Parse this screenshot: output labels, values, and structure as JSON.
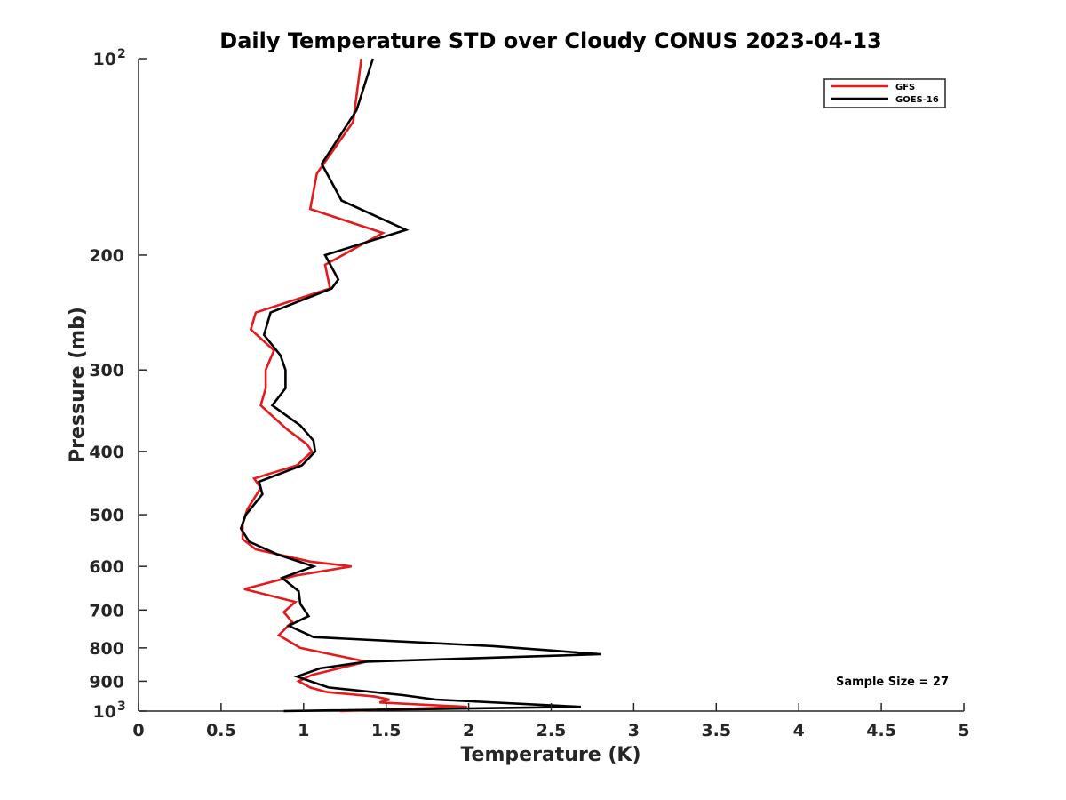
{
  "chart_data": {
    "type": "line",
    "title": "Daily Temperature STD over Cloudy CONUS 2023-04-13",
    "xlabel": "Temperature (K)",
    "ylabel": "Pressure (mb)",
    "xlim": [
      0,
      5
    ],
    "ylim": [
      100,
      1000
    ],
    "y_scale": "log",
    "y_reversed": true,
    "grid": false,
    "legend_position": "top-right",
    "x_ticks": [
      {
        "value": 0,
        "label": "0"
      },
      {
        "value": 0.5,
        "label": "0.5"
      },
      {
        "value": 1,
        "label": "1"
      },
      {
        "value": 1.5,
        "label": "1.5"
      },
      {
        "value": 2,
        "label": "2"
      },
      {
        "value": 2.5,
        "label": "2.5"
      },
      {
        "value": 3,
        "label": "3"
      },
      {
        "value": 3.5,
        "label": "3.5"
      },
      {
        "value": 4,
        "label": "4"
      },
      {
        "value": 4.5,
        "label": "4.5"
      },
      {
        "value": 5,
        "label": "5"
      }
    ],
    "y_ticks": [
      {
        "value": 100,
        "label": "10",
        "sup": "2"
      },
      {
        "value": 200,
        "label": "200",
        "sup": ""
      },
      {
        "value": 300,
        "label": "300",
        "sup": ""
      },
      {
        "value": 400,
        "label": "400",
        "sup": ""
      },
      {
        "value": 500,
        "label": "500",
        "sup": ""
      },
      {
        "value": 600,
        "label": "600",
        "sup": ""
      },
      {
        "value": 700,
        "label": "700",
        "sup": ""
      },
      {
        "value": 800,
        "label": "800",
        "sup": ""
      },
      {
        "value": 900,
        "label": "900",
        "sup": ""
      },
      {
        "value": 1000,
        "label": "10",
        "sup": "3"
      }
    ],
    "series": [
      {
        "name": "GFS",
        "color": "#e41a1c",
        "points": [
          [
            1.35,
            100
          ],
          [
            1.3,
            125
          ],
          [
            1.08,
            150
          ],
          [
            1.04,
            170
          ],
          [
            1.48,
            185
          ],
          [
            1.13,
            207
          ],
          [
            1.16,
            225
          ],
          [
            0.71,
            245
          ],
          [
            0.68,
            260
          ],
          [
            0.82,
            280
          ],
          [
            0.77,
            300
          ],
          [
            0.77,
            320
          ],
          [
            0.74,
            340
          ],
          [
            0.9,
            370
          ],
          [
            1.02,
            390
          ],
          [
            1.05,
            400
          ],
          [
            0.96,
            420
          ],
          [
            0.7,
            440
          ],
          [
            0.74,
            455
          ],
          [
            0.66,
            490
          ],
          [
            0.63,
            515
          ],
          [
            0.63,
            545
          ],
          [
            0.71,
            565
          ],
          [
            1.04,
            590
          ],
          [
            1.29,
            600
          ],
          [
            0.95,
            620
          ],
          [
            0.64,
            650
          ],
          [
            0.95,
            680
          ],
          [
            0.88,
            705
          ],
          [
            0.93,
            730
          ],
          [
            0.85,
            765
          ],
          [
            0.98,
            800
          ],
          [
            1.38,
            840
          ],
          [
            1.05,
            880
          ],
          [
            0.97,
            900
          ],
          [
            1.04,
            920
          ],
          [
            1.14,
            935
          ],
          [
            1.43,
            950
          ],
          [
            1.52,
            960
          ],
          [
            1.46,
            970
          ],
          [
            1.99,
            985
          ],
          [
            1.22,
            1000
          ]
        ]
      },
      {
        "name": "GOES-16",
        "color": "#000000",
        "points": [
          [
            1.42,
            100
          ],
          [
            1.32,
            120
          ],
          [
            1.11,
            145
          ],
          [
            1.23,
            165
          ],
          [
            1.62,
            183
          ],
          [
            1.13,
            200
          ],
          [
            1.21,
            218
          ],
          [
            1.17,
            225
          ],
          [
            0.8,
            245
          ],
          [
            0.76,
            265
          ],
          [
            0.86,
            285
          ],
          [
            0.89,
            300
          ],
          [
            0.89,
            320
          ],
          [
            0.81,
            340
          ],
          [
            0.98,
            365
          ],
          [
            1.06,
            385
          ],
          [
            1.07,
            400
          ],
          [
            0.99,
            420
          ],
          [
            0.73,
            445
          ],
          [
            0.75,
            465
          ],
          [
            0.65,
            500
          ],
          [
            0.62,
            525
          ],
          [
            0.67,
            550
          ],
          [
            0.84,
            575
          ],
          [
            1.06,
            600
          ],
          [
            0.87,
            625
          ],
          [
            0.97,
            655
          ],
          [
            0.98,
            685
          ],
          [
            1.03,
            715
          ],
          [
            0.91,
            740
          ],
          [
            1.06,
            770
          ],
          [
            2.15,
            795
          ],
          [
            2.8,
            818
          ],
          [
            1.38,
            840
          ],
          [
            1.1,
            860
          ],
          [
            0.96,
            885
          ],
          [
            1.04,
            900
          ],
          [
            1.15,
            920
          ],
          [
            1.6,
            945
          ],
          [
            1.8,
            960
          ],
          [
            2.68,
            985
          ],
          [
            0.88,
            1000
          ]
        ]
      }
    ],
    "annotation": "Sample Size = 27"
  }
}
